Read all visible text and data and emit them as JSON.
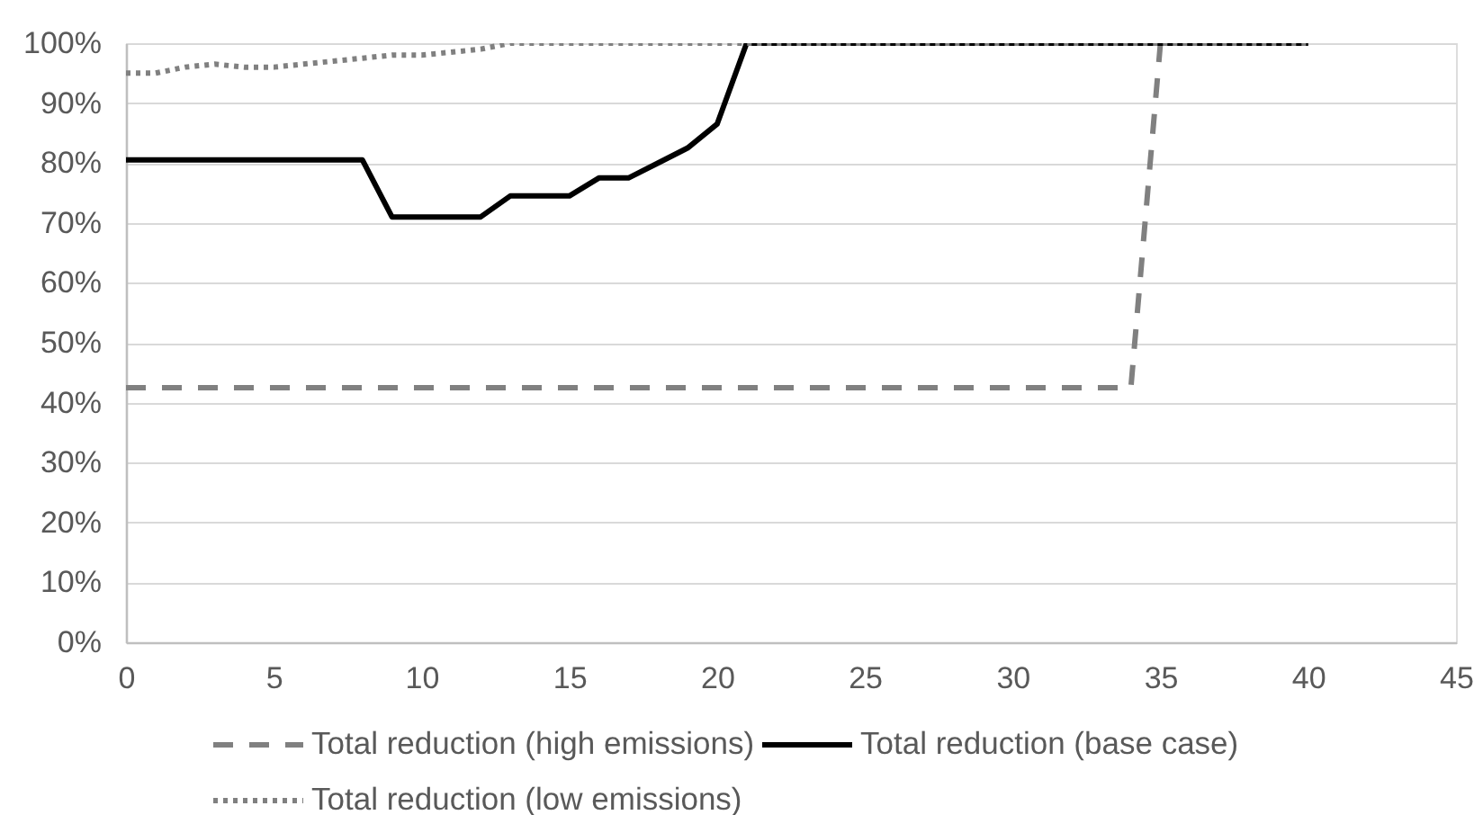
{
  "chart_data": {
    "type": "line",
    "x": [
      0,
      1,
      2,
      3,
      4,
      5,
      6,
      7,
      8,
      9,
      10,
      11,
      12,
      13,
      14,
      15,
      16,
      17,
      18,
      19,
      20,
      21,
      22,
      23,
      24,
      25,
      26,
      27,
      28,
      29,
      30,
      31,
      32,
      33,
      34,
      35,
      36,
      37,
      38,
      39,
      40
    ],
    "series": [
      {
        "name": "Total reduction (high emissions)",
        "color": "#808080",
        "line_style": "dashed",
        "values": [
          42.5,
          42.5,
          42.5,
          42.5,
          42.5,
          42.5,
          42.5,
          42.5,
          42.5,
          42.5,
          42.5,
          42.5,
          42.5,
          42.5,
          42.5,
          42.5,
          42.5,
          42.5,
          42.5,
          42.5,
          42.5,
          42.5,
          42.5,
          42.5,
          42.5,
          42.5,
          42.5,
          42.5,
          42.5,
          42.5,
          42.5,
          42.5,
          42.5,
          42.5,
          42.5,
          100,
          100,
          100,
          100,
          100,
          100
        ]
      },
      {
        "name": "Total reduction (base case)",
        "color": "#000000",
        "line_style": "solid",
        "values": [
          80.5,
          80.5,
          80.5,
          80.5,
          80.5,
          80.5,
          80.5,
          80.5,
          80.5,
          71,
          71,
          71,
          71,
          74.5,
          74.5,
          74.5,
          77.5,
          77.5,
          80,
          82.5,
          86.5,
          100,
          100,
          100,
          100,
          100,
          100,
          100,
          100,
          100,
          100,
          100,
          100,
          100,
          100,
          100,
          100,
          100,
          100,
          100,
          100
        ]
      },
      {
        "name": "Total reduction (low emissions)",
        "color": "#808080",
        "line_style": "dotted",
        "values": [
          95,
          95,
          96,
          96.5,
          96,
          96,
          96.5,
          97,
          97.5,
          98,
          98,
          98.5,
          99,
          100,
          100,
          100,
          100,
          100,
          100,
          100,
          100,
          100,
          100,
          100,
          100,
          100,
          100,
          100,
          100,
          100,
          100,
          100,
          100,
          100,
          100,
          100,
          100,
          100,
          100,
          100,
          100
        ]
      }
    ],
    "xlim": [
      0,
      45
    ],
    "xticks": [
      0,
      5,
      10,
      15,
      20,
      25,
      30,
      35,
      40,
      45
    ],
    "ylim": [
      0,
      100
    ],
    "yticks": [
      {
        "value": 0,
        "label": "0%"
      },
      {
        "value": 10,
        "label": "10%"
      },
      {
        "value": 20,
        "label": "20%"
      },
      {
        "value": 30,
        "label": "30%"
      },
      {
        "value": 40,
        "label": "40%"
      },
      {
        "value": 50,
        "label": "50%"
      },
      {
        "value": 60,
        "label": "60%"
      },
      {
        "value": 70,
        "label": "70%"
      },
      {
        "value": 80,
        "label": "80%"
      },
      {
        "value": 90,
        "label": "90%"
      },
      {
        "value": 100,
        "label": "100%"
      }
    ],
    "grid": "y",
    "legend": "bottom"
  }
}
